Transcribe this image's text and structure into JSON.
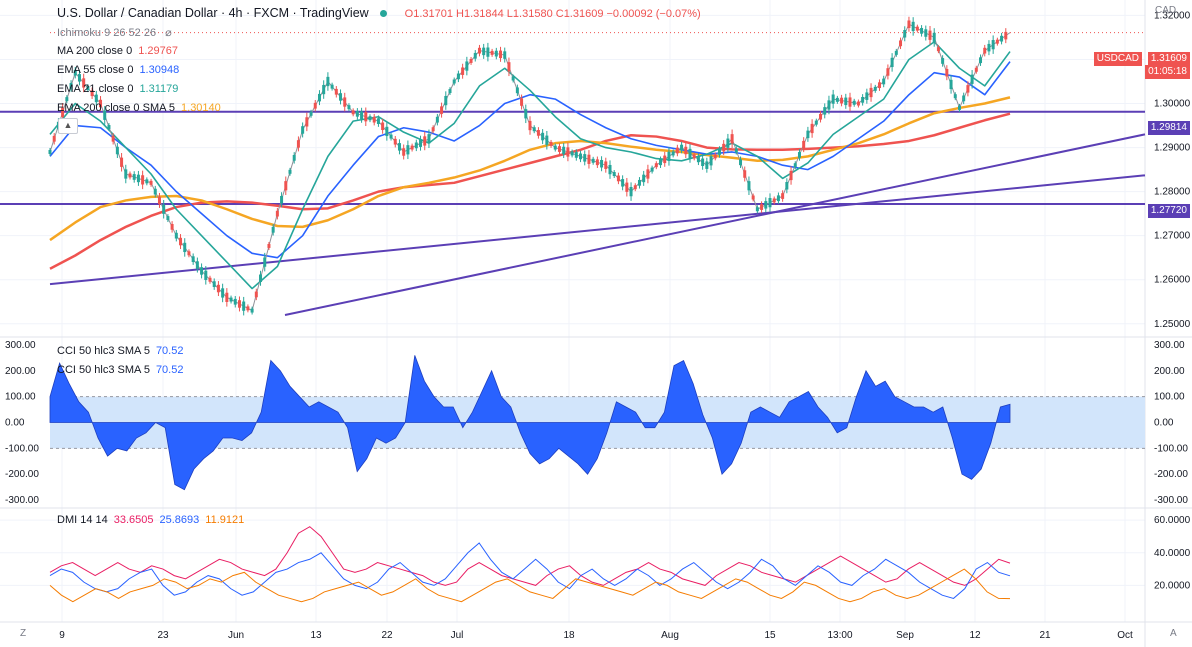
{
  "header": {
    "title": "U.S. Dollar / Canadian Dollar · 4h · FXCM · TradingView",
    "ohlc": "O1.31701 H1.31844 L1.31580 C1.31609 −0.00092 (−0.07%)"
  },
  "indicators": [
    {
      "label": "Ichimoku 9 26 52 26",
      "value": ""
    },
    {
      "label": "MA 200 close 0",
      "value": "1.29767",
      "color": "#ef5350"
    },
    {
      "label": "EMA 55 close 0",
      "value": "1.30948",
      "color": "#2962ff"
    },
    {
      "label": "EMA 21 close 0",
      "value": "1.31179",
      "color": "#26a69a"
    },
    {
      "label": "EMA 200 close 0 SMA 5",
      "value": "1.30140",
      "color": "#f5a623"
    }
  ],
  "cci_legend": [
    {
      "label": "CCI 50 hlc3 SMA 5",
      "value": "70.52"
    },
    {
      "label": "CCI 50 hlc3 SMA 5",
      "value": "70.52"
    }
  ],
  "dmi_legend": {
    "label": "DMI 14 14",
    "v1": "33.6505",
    "v2": "25.8693",
    "v3": "11.9121"
  },
  "currency": "CAD",
  "symbol_tag": "USDCAD",
  "last_price_tag": "1.31609",
  "countdown": "01:05:18",
  "level_tags": [
    "1.29814",
    "1.27720"
  ],
  "footer": {
    "left": "Z",
    "right": "A"
  },
  "chart_data": [
    {
      "type": "line",
      "title": "U.S. Dollar / Canadian Dollar · 4h · FXCM · TradingView",
      "x_ticks": [
        "9",
        "23",
        "Jun",
        "13",
        "22",
        "Jul",
        "18",
        "Aug",
        "15",
        "13:00",
        "Sep",
        "12",
        "21",
        "Oct"
      ],
      "y_ticks": [
        "1.32000",
        "1.31000",
        "1.30000",
        "1.29000",
        "1.28000",
        "1.27000",
        "1.26000",
        "1.25000"
      ],
      "ylim": [
        1.247,
        1.3235
      ],
      "horizontal_levels": [
        1.29814,
        1.2772
      ],
      "series": [
        {
          "name": "MA 200 close 0",
          "values": [
            1.2625,
            1.2655,
            1.269,
            1.272,
            1.2745,
            1.2765,
            1.2775,
            1.2778,
            1.2775,
            1.2768,
            1.276,
            1.2762,
            1.278,
            1.28,
            1.281,
            1.2815,
            1.282,
            1.2835,
            1.285,
            1.2865,
            1.288,
            1.2895,
            1.2915,
            1.2928,
            1.2925,
            1.2915,
            1.29,
            1.2896,
            1.2895,
            1.2895,
            1.2897,
            1.29,
            1.2903,
            1.2908,
            1.2915,
            1.2928,
            1.2945,
            1.2962,
            1.2977
          ]
        },
        {
          "name": "EMA 200 close 0 SMA 5",
          "values": [
            1.269,
            1.273,
            1.2765,
            1.278,
            1.2788,
            1.279,
            1.278,
            1.276,
            1.2738,
            1.2722,
            1.272,
            1.2735,
            1.276,
            1.279,
            1.281,
            1.282,
            1.2832,
            1.2848,
            1.287,
            1.2895,
            1.291,
            1.2915,
            1.291,
            1.2902,
            1.2895,
            1.289,
            1.2883,
            1.2877,
            1.287,
            1.2872,
            1.288,
            1.2895,
            1.291,
            1.293,
            1.2955,
            1.2978,
            1.299,
            1.3,
            1.3014
          ]
        },
        {
          "name": "EMA 55 close 0",
          "values": [
            1.288,
            1.295,
            1.2945,
            1.29,
            1.286,
            1.28,
            1.275,
            1.27,
            1.266,
            1.265,
            1.27,
            1.279,
            1.286,
            1.2925,
            1.2945,
            1.2935,
            1.2915,
            1.295,
            1.3,
            1.302,
            1.301,
            1.2975,
            1.2945,
            1.292,
            1.2905,
            1.2895,
            1.2885,
            1.289,
            1.288,
            1.286,
            1.285,
            1.288,
            1.292,
            1.296,
            1.302,
            1.307,
            1.306,
            1.302,
            1.3095
          ]
        },
        {
          "name": "EMA 21 close 0",
          "values": [
            1.293,
            1.3,
            1.296,
            1.29,
            1.284,
            1.276,
            1.27,
            1.264,
            1.258,
            1.263,
            1.276,
            1.288,
            1.296,
            1.297,
            1.2935,
            1.291,
            1.2955,
            1.304,
            1.308,
            1.303,
            1.297,
            1.292,
            1.29,
            1.289,
            1.2875,
            1.287,
            1.2885,
            1.291,
            1.288,
            1.283,
            1.2865,
            1.293,
            1.297,
            1.301,
            1.31,
            1.314,
            1.308,
            1.304,
            1.3118
          ]
        },
        {
          "name": "price",
          "values": [
            1.289,
            1.307,
            1.3,
            1.284,
            1.282,
            1.27,
            1.262,
            1.256,
            1.253,
            1.275,
            1.294,
            1.305,
            1.298,
            1.296,
            1.289,
            1.292,
            1.305,
            1.312,
            1.311,
            1.295,
            1.29,
            1.288,
            1.286,
            1.28,
            1.286,
            1.29,
            1.286,
            1.292,
            1.276,
            1.279,
            1.293,
            1.301,
            1.3,
            1.305,
            1.318,
            1.315,
            1.299,
            1.312,
            1.31609
          ]
        }
      ]
    },
    {
      "type": "area",
      "title": "CCI 50 hlc3 SMA 5",
      "y_ticks": [
        "300.00",
        "200.00",
        "100.00",
        "0.00",
        "-100.00",
        "-200.00",
        "-300.00"
      ],
      "ylim": [
        -300,
        300
      ],
      "band": [
        -100,
        100
      ],
      "values": [
        100,
        230,
        150,
        80,
        40,
        -60,
        -130,
        -100,
        -110,
        -60,
        -40,
        0,
        -20,
        -240,
        -260,
        -180,
        -140,
        -110,
        -60,
        -60,
        -70,
        -40,
        40,
        240,
        200,
        140,
        100,
        60,
        80,
        60,
        40,
        -20,
        -190,
        -140,
        -60,
        -80,
        -60,
        0,
        260,
        160,
        100,
        60,
        60,
        -20,
        40,
        120,
        200,
        100,
        60,
        -40,
        -120,
        -160,
        -140,
        -100,
        -130,
        -160,
        -200,
        -140,
        -40,
        80,
        60,
        40,
        -20,
        -20,
        40,
        220,
        240,
        150,
        30,
        -60,
        -200,
        -160,
        -80,
        40,
        60,
        40,
        20,
        80,
        100,
        120,
        60,
        20,
        -40,
        -20,
        100,
        200,
        140,
        160,
        100,
        80,
        60,
        60,
        40,
        60,
        -60,
        -200,
        -220,
        -180,
        -80,
        60,
        70.52
      ]
    },
    {
      "type": "line",
      "title": "DMI 14 14",
      "y_ticks": [
        "60.0000",
        "40.0000",
        "20.0000"
      ],
      "ylim": [
        0,
        65
      ],
      "series": [
        {
          "name": "",
          "values": [
            28,
            32,
            34,
            30,
            26,
            30,
            34,
            30,
            28,
            32,
            30,
            26,
            24,
            28,
            32,
            36,
            34,
            30,
            28,
            26,
            30,
            40,
            52,
            56,
            50,
            40,
            30,
            28,
            30,
            34,
            32,
            30,
            28,
            26,
            22,
            20,
            22,
            30,
            34,
            30,
            26,
            24,
            22,
            20,
            26,
            30,
            32,
            26,
            22,
            20,
            24,
            28,
            30,
            34,
            30,
            28,
            24,
            22,
            20,
            26,
            30,
            34,
            32,
            28,
            26,
            24,
            22,
            26,
            30,
            34,
            38,
            34,
            30,
            26,
            22,
            24,
            30,
            34,
            30,
            26,
            22,
            20,
            24,
            30,
            36,
            33.65
          ]
        },
        {
          "name": "",
          "values": [
            26,
            30,
            28,
            22,
            18,
            16,
            18,
            24,
            28,
            30,
            20,
            14,
            16,
            22,
            26,
            24,
            18,
            14,
            16,
            22,
            28,
            30,
            34,
            36,
            40,
            32,
            24,
            20,
            18,
            22,
            30,
            34,
            28,
            22,
            20,
            24,
            32,
            40,
            46,
            36,
            28,
            24,
            30,
            36,
            30,
            22,
            18,
            26,
            30,
            24,
            20,
            24,
            30,
            26,
            20,
            24,
            30,
            34,
            28,
            22,
            18,
            22,
            28,
            36,
            32,
            24,
            20,
            26,
            32,
            28,
            22,
            20,
            26,
            30,
            36,
            32,
            28,
            22,
            18,
            14,
            12,
            18,
            30,
            34,
            28,
            25.87
          ]
        },
        {
          "name": "",
          "values": [
            20,
            14,
            10,
            14,
            18,
            16,
            12,
            16,
            18,
            20,
            24,
            22,
            18,
            20,
            24,
            22,
            26,
            28,
            22,
            18,
            14,
            12,
            10,
            12,
            16,
            18,
            20,
            22,
            18,
            14,
            16,
            20,
            24,
            18,
            14,
            12,
            10,
            14,
            18,
            22,
            24,
            20,
            16,
            14,
            12,
            18,
            24,
            22,
            20,
            18,
            16,
            14,
            18,
            22,
            20,
            16,
            14,
            12,
            16,
            20,
            24,
            22,
            18,
            14,
            12,
            16,
            22,
            20,
            16,
            12,
            10,
            12,
            16,
            18,
            14,
            12,
            14,
            18,
            22,
            26,
            30,
            24,
            16,
            12,
            11.91
          ]
        }
      ]
    }
  ]
}
